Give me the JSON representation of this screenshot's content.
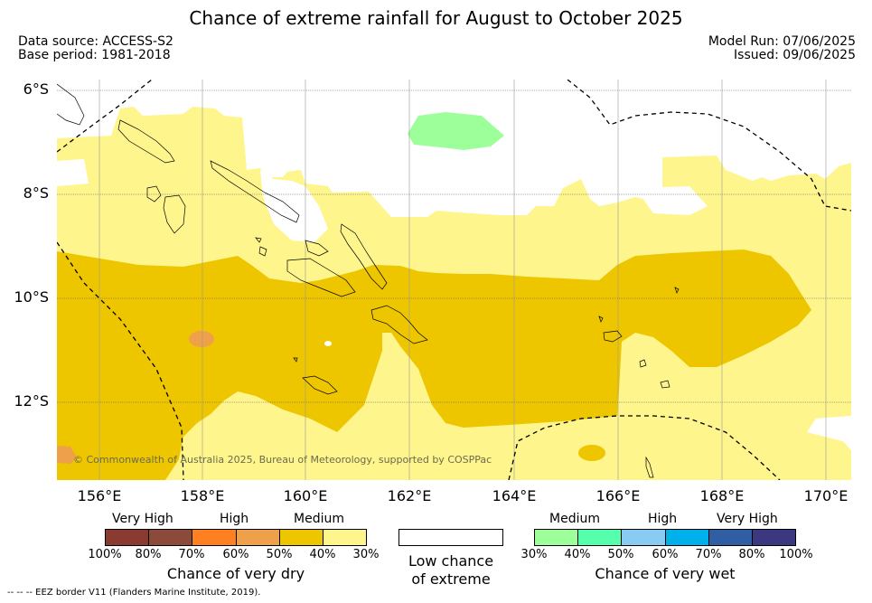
{
  "title": "Chance of extreme rainfall for August to October 2025",
  "info": {
    "data_source": "Data source: ACCESS-S2",
    "base_period": "Base period: 1981-2018",
    "model_run": "Model Run: 07/06/2025",
    "issued": "Issued: 09/06/2025"
  },
  "map": {
    "lat_labels": [
      "6°S",
      "8°S",
      "10°S",
      "12°S"
    ],
    "lon_labels": [
      "156°E",
      "158°E",
      "160°E",
      "162°E",
      "164°E",
      "166°E",
      "168°E",
      "170°E"
    ],
    "copyright": "© Commonwealth of Australia 2025, Bureau of Meteorology, supported by COSPPac"
  },
  "legend": {
    "dry": {
      "categories": [
        "Very High",
        "High",
        "Medium"
      ],
      "ticks": [
        "100%",
        "80%",
        "70%",
        "60%",
        "50%",
        "40%",
        "30%"
      ],
      "title": "Chance of very dry",
      "colors": [
        "#8b3a31",
        "#8b4a3a",
        "#ff8020",
        "#eea04a",
        "#edc600",
        "#fff58d"
      ]
    },
    "neutral": {
      "title_line1": "Low chance",
      "title_line2": "of extreme",
      "color": "#ffffff"
    },
    "wet": {
      "categories": [
        "Medium",
        "High",
        "Very High"
      ],
      "ticks": [
        "30%",
        "40%",
        "50%",
        "60%",
        "70%",
        "80%",
        "100%"
      ],
      "title": "Chance of very wet",
      "colors": [
        "#9cff9a",
        "#55ffab",
        "#88ccf4",
        "#00b0eb",
        "#2f5fa2",
        "#3c3880"
      ]
    }
  },
  "footer": "--  --  -- EEZ border V11 (Flanders Marine Institute, 2019)."
}
